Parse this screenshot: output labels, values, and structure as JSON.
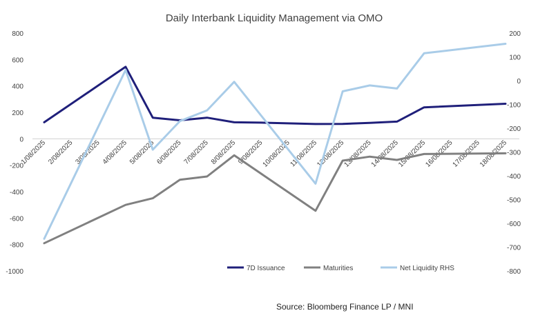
{
  "chart_data": {
    "type": "line",
    "title": "Daily Interbank Liquidity Management via OMO",
    "x_tick_labels": [
      "1/08/2025",
      "2/08/2025",
      "3/08/2025",
      "4/08/2025",
      "5/08/2025",
      "6/08/2025",
      "7/08/2025",
      "8/08/2025",
      "9/08/2025",
      "10/08/2025",
      "11/08/2025",
      "12/08/2025",
      "13/08/2025",
      "14/08/2025",
      "15/08/2025",
      "16/08/2025",
      "17/08/2025",
      "18/08/2025"
    ],
    "y_left": {
      "ticks": [
        800,
        600,
        400,
        200,
        0,
        -200,
        -400,
        -600,
        -800,
        -1000
      ],
      "ylim": [
        -1000,
        800
      ]
    },
    "y_right": {
      "ticks": [
        200,
        100,
        0,
        -100,
        -200,
        -300,
        -400,
        -500,
        -600,
        -700,
        -800
      ],
      "ylim": [
        -800,
        200
      ]
    },
    "grid": false,
    "legend_position": "bottom",
    "series": [
      {
        "name": "7D Issuance",
        "axis": "left",
        "color": "#1f1f7a",
        "points": [
          [
            "1/08/2025",
            125
          ],
          [
            "4/08/2025",
            545
          ],
          [
            "5/08/2025",
            160
          ],
          [
            "6/08/2025",
            140
          ],
          [
            "7/08/2025",
            160
          ],
          [
            "8/08/2025",
            125
          ],
          [
            "9/08/2025",
            122
          ],
          [
            "11/08/2025",
            112
          ],
          [
            "12/08/2025",
            113
          ],
          [
            "13/08/2025",
            120
          ],
          [
            "14/08/2025",
            130
          ],
          [
            "15/08/2025",
            238
          ],
          [
            "18/08/2025",
            265
          ]
        ]
      },
      {
        "name": "Maturities",
        "axis": "left",
        "color": "#808080",
        "points": [
          [
            "1/08/2025",
            -790
          ],
          [
            "4/08/2025",
            -500
          ],
          [
            "5/08/2025",
            -450
          ],
          [
            "6/08/2025",
            -310
          ],
          [
            "7/08/2025",
            -285
          ],
          [
            "8/08/2025",
            -125
          ],
          [
            "11/08/2025",
            -545
          ],
          [
            "12/08/2025",
            -165
          ],
          [
            "13/08/2025",
            -135
          ],
          [
            "14/08/2025",
            -160
          ],
          [
            "15/08/2025",
            -115
          ],
          [
            "18/08/2025",
            -110
          ]
        ]
      },
      {
        "name": "Net Liquidity RHS",
        "axis": "right",
        "color": "#a9cce8",
        "points": [
          [
            "1/08/2025",
            -665
          ],
          [
            "4/08/2025",
            45
          ],
          [
            "5/08/2025",
            -290
          ],
          [
            "6/08/2025",
            -170
          ],
          [
            "7/08/2025",
            -125
          ],
          [
            "8/08/2025",
            -5
          ],
          [
            "11/08/2025",
            -433
          ],
          [
            "12/08/2025",
            -45
          ],
          [
            "13/08/2025",
            -20
          ],
          [
            "14/08/2025",
            -33
          ],
          [
            "15/08/2025",
            115
          ],
          [
            "18/08/2025",
            155
          ]
        ]
      }
    ]
  },
  "source": "Source: Bloomberg Finance LP / MNI"
}
